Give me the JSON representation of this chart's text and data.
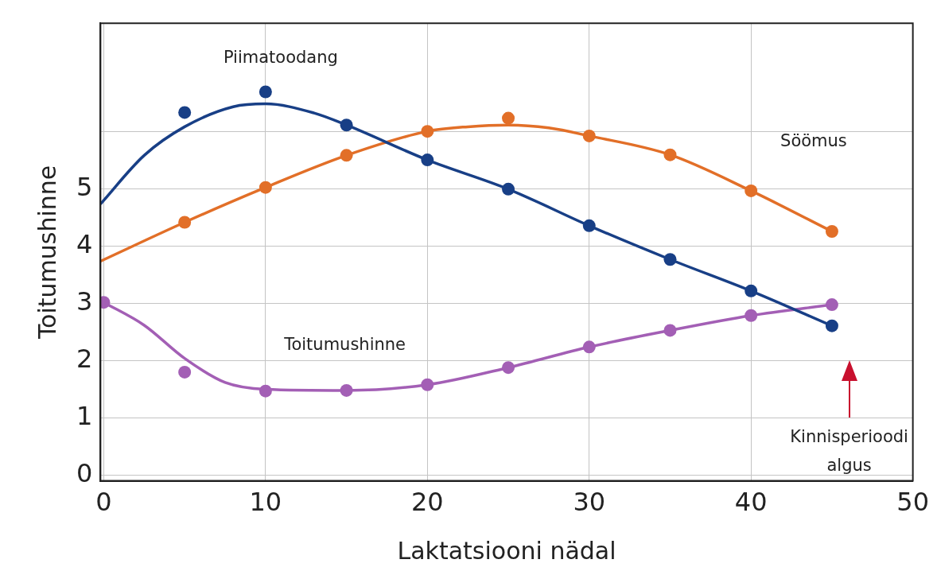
{
  "chart_data": {
    "type": "scatter",
    "xlabel": "Laktatsiooni nädal",
    "ylabel": "Toitumushinne",
    "xlim": [
      -0.2,
      50
    ],
    "xticks": [
      0,
      10,
      20,
      30,
      40,
      50
    ],
    "ylim": [
      -0.1,
      7.9
    ],
    "yticks": [
      0,
      1,
      2,
      3,
      4,
      5,
      {
        "value": 6,
        "label": null
      }
    ],
    "grid": true,
    "legend": false,
    "marker": "circle",
    "series": [
      {
        "color": "#183f86",
        "x": [
          5,
          10,
          15,
          20,
          25,
          30,
          35,
          40,
          45
        ],
        "values": [
          6.34,
          6.7,
          6.12,
          5.51,
          5.0,
          4.36,
          3.77,
          3.22,
          2.61
        ]
      },
      {
        "color": "#e26f28",
        "x": [
          5,
          10,
          15,
          20,
          25,
          30,
          35,
          40,
          45
        ],
        "values": [
          4.42,
          5.03,
          5.59,
          6.01,
          6.24,
          5.93,
          5.6,
          4.97,
          4.26
        ]
      },
      {
        "color": "#a35fb5",
        "x": [
          0,
          5,
          10,
          15,
          20,
          25,
          30,
          35,
          40,
          45
        ],
        "values": [
          3.02,
          1.8,
          1.47,
          1.48,
          1.58,
          1.88,
          2.24,
          2.53,
          2.79,
          2.98
        ]
      },
      {
        "type": "line",
        "name": "Piimatoodang",
        "color": "#183f86",
        "marker": "none",
        "line_style": "solid",
        "x": [
          -0.2,
          2.5,
          5,
          8,
          10,
          13,
          15,
          20,
          25,
          30,
          35,
          40,
          45
        ],
        "values": [
          4.74,
          5.59,
          6.09,
          6.44,
          6.49,
          6.33,
          6.12,
          5.51,
          5.0,
          4.36,
          3.77,
          3.22,
          2.61
        ]
      },
      {
        "type": "line",
        "name": "Söömus",
        "color": "#e26f28",
        "marker": "none",
        "line_style": "solid",
        "x": [
          -0.2,
          5,
          10,
          15,
          20,
          22.5,
          25,
          27.5,
          30,
          35,
          40,
          45
        ],
        "values": [
          3.74,
          4.42,
          5.03,
          5.59,
          6.01,
          6.09,
          6.12,
          6.07,
          5.93,
          5.6,
          4.97,
          4.26
        ]
      },
      {
        "type": "line",
        "name": "Toitumushinne",
        "color": "#a35fb5",
        "marker": "none",
        "line_style": "solid",
        "x": [
          0,
          2.5,
          5,
          7.5,
          10,
          15,
          20,
          25,
          30,
          35,
          40,
          45
        ],
        "values": [
          3.02,
          2.62,
          2.04,
          1.62,
          1.5,
          1.48,
          1.58,
          1.88,
          2.24,
          2.53,
          2.79,
          2.98
        ]
      }
    ],
    "annotations": [
      "Kinnisperioodi\nalgus"
    ]
  }
}
